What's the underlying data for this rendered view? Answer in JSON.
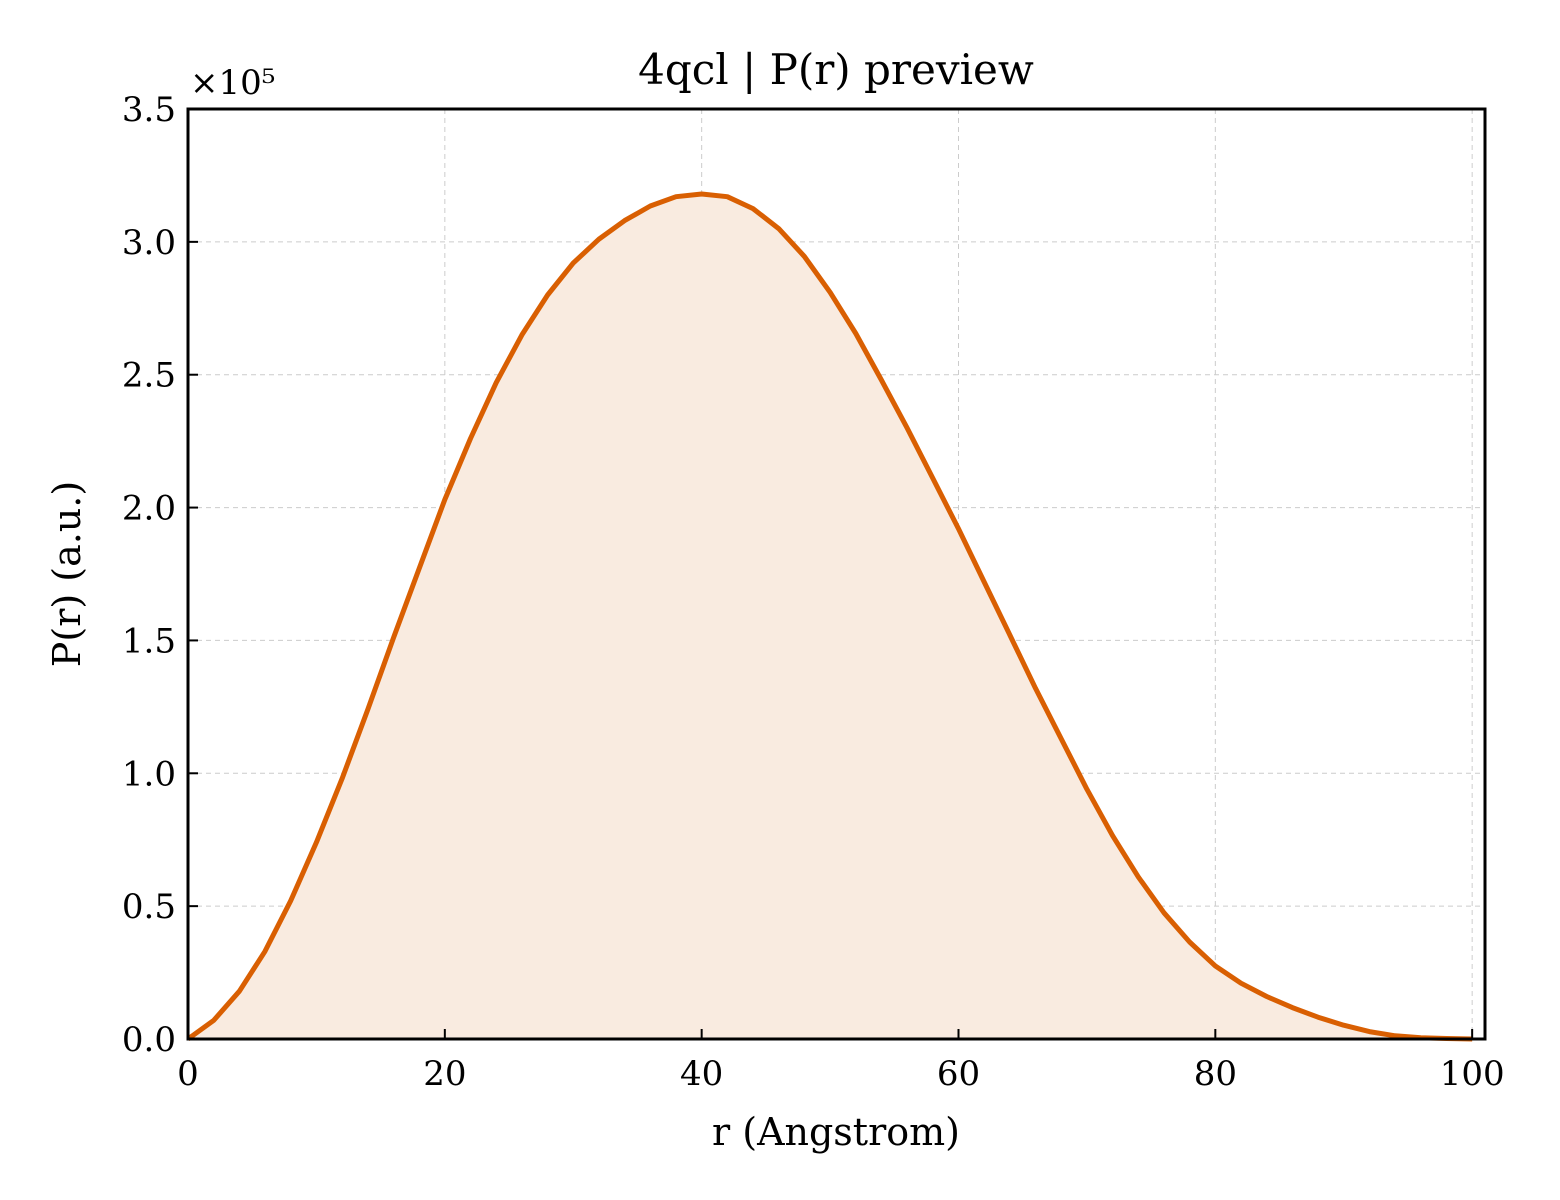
{
  "chart_data": {
    "type": "area",
    "title": "4qcl | P(r) preview",
    "xlabel": "r (Angstrom)",
    "ylabel": "P(r) (a.u.)",
    "y_multiplier_label": "×10⁵",
    "y_multiplier": 100000,
    "xlim": [
      0,
      101
    ],
    "ylim": [
      0,
      3.5
    ],
    "x_ticks": [
      0,
      20,
      40,
      60,
      80,
      100
    ],
    "x_tick_labels": [
      "0",
      "20",
      "40",
      "60",
      "80",
      "100"
    ],
    "y_ticks": [
      0,
      0.5,
      1.0,
      1.5,
      2.0,
      2.5,
      3.0,
      3.5
    ],
    "y_tick_labels": [
      "0.0",
      "0.5",
      "1.0",
      "1.5",
      "2.0",
      "2.5",
      "3.0",
      "3.5"
    ],
    "grid": true,
    "line_color": "#d95f02",
    "fill_color": "#f9ebe0",
    "series": [
      {
        "x": [
          0,
          2,
          4,
          6,
          8,
          10,
          12,
          14,
          16,
          18,
          20,
          22,
          24,
          26,
          28,
          30,
          32,
          34,
          36,
          38,
          40,
          42,
          44,
          46,
          48,
          50,
          52,
          54,
          56,
          58,
          60,
          62,
          64,
          66,
          68,
          70,
          72,
          74,
          76,
          78,
          80,
          82,
          84,
          86,
          88,
          90,
          92,
          94,
          96,
          98,
          100
        ],
        "y": [
          0.0,
          0.07,
          0.18,
          0.33,
          0.52,
          0.74,
          0.98,
          1.24,
          1.51,
          1.77,
          2.03,
          2.26,
          2.47,
          2.65,
          2.8,
          2.92,
          3.01,
          3.08,
          3.135,
          3.17,
          3.18,
          3.17,
          3.125,
          3.05,
          2.945,
          2.81,
          2.655,
          2.48,
          2.3,
          2.11,
          1.92,
          1.72,
          1.52,
          1.32,
          1.13,
          0.94,
          0.765,
          0.61,
          0.475,
          0.365,
          0.275,
          0.21,
          0.16,
          0.118,
          0.082,
          0.052,
          0.028,
          0.012,
          0.005,
          0.002,
          0.0
        ]
      }
    ]
  }
}
